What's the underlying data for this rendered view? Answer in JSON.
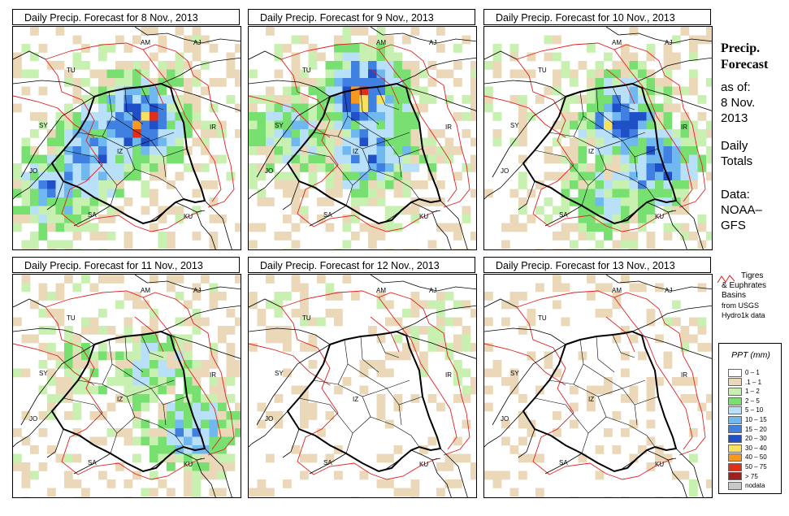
{
  "panels": [
    {
      "title": "Daily Precip. Forecast for  8 Nov., 2013",
      "intensity": 0.9,
      "seed": 11,
      "centers": [
        [
          0.55,
          0.42,
          0.9
        ],
        [
          0.35,
          0.55,
          0.7
        ],
        [
          0.2,
          0.7,
          0.6
        ]
      ]
    },
    {
      "title": "Daily Precip. Forecast for  9 Nov., 2013",
      "intensity": 0.85,
      "seed": 23,
      "centers": [
        [
          0.5,
          0.3,
          1.0
        ],
        [
          0.55,
          0.55,
          0.7
        ],
        [
          0.2,
          0.45,
          0.5
        ]
      ]
    },
    {
      "title": "Daily Precip. Forecast for  10 Nov., 2013",
      "intensity": 0.8,
      "seed": 37,
      "centers": [
        [
          0.6,
          0.4,
          0.9
        ],
        [
          0.75,
          0.6,
          0.8
        ],
        [
          0.55,
          0.75,
          0.5
        ]
      ]
    },
    {
      "title": "Daily Precip. Forecast for  11 Nov., 2013",
      "intensity": 0.6,
      "seed": 41,
      "centers": [
        [
          0.78,
          0.68,
          0.9
        ],
        [
          0.6,
          0.4,
          0.6
        ],
        [
          0.3,
          0.35,
          0.3
        ]
      ]
    },
    {
      "title": "Daily Precip. Forecast for  12 Nov., 2013",
      "intensity": 0.25,
      "seed": 53,
      "centers": [
        [
          0.85,
          0.3,
          0.7
        ],
        [
          0.2,
          0.1,
          0.3
        ]
      ]
    },
    {
      "title": "Daily Precip. Forecast for  13 Nov., 2013",
      "intensity": 0.12,
      "seed": 67,
      "centers": [
        [
          0.75,
          0.2,
          0.5
        ],
        [
          0.9,
          0.9,
          0.3
        ]
      ]
    }
  ],
  "country_labels": [
    "AM",
    "AJ",
    "TU",
    "SY",
    "IR",
    "IZ",
    "JO",
    "SA",
    "KU"
  ],
  "side": {
    "title_line1": "Precip.",
    "title_line2": "Forecast",
    "asof": "as of:",
    "date1": "8 Nov.",
    "date2": "2013",
    "daily1": "Daily",
    "daily2": "Totals",
    "data1": "Data:",
    "data2": "NOAA–",
    "data3": "GFS"
  },
  "basin_note": {
    "line1": "Tigres",
    "line2": "& Euphrates",
    "line3": "Basins",
    "line4": "from USGS",
    "line5": "Hydro1k data",
    "river_color": "#e02020"
  },
  "legend": {
    "title": "PPT (mm)",
    "classes": [
      {
        "label": "0 – 1",
        "color": "#ffffff"
      },
      {
        "label": ".1 – 1",
        "color": "#ead8b8"
      },
      {
        "label": "1 – 2",
        "color": "#c8f0b0"
      },
      {
        "label": "2 – 5",
        "color": "#78e070"
      },
      {
        "label": "5 – 10",
        "color": "#b8e0f8"
      },
      {
        "label": "10 – 15",
        "color": "#70b8f0"
      },
      {
        "label": "15 – 20",
        "color": "#4080e0"
      },
      {
        "label": "20 – 30",
        "color": "#2050c8"
      },
      {
        "label": "30 – 40",
        "color": "#f8e060"
      },
      {
        "label": "40 – 50",
        "color": "#f89820"
      },
      {
        "label": "50 – 75",
        "color": "#e03018"
      },
      {
        "label": "> 75",
        "color": "#a02020"
      },
      {
        "label": "nodata",
        "color": "#c8c8c8"
      }
    ]
  }
}
